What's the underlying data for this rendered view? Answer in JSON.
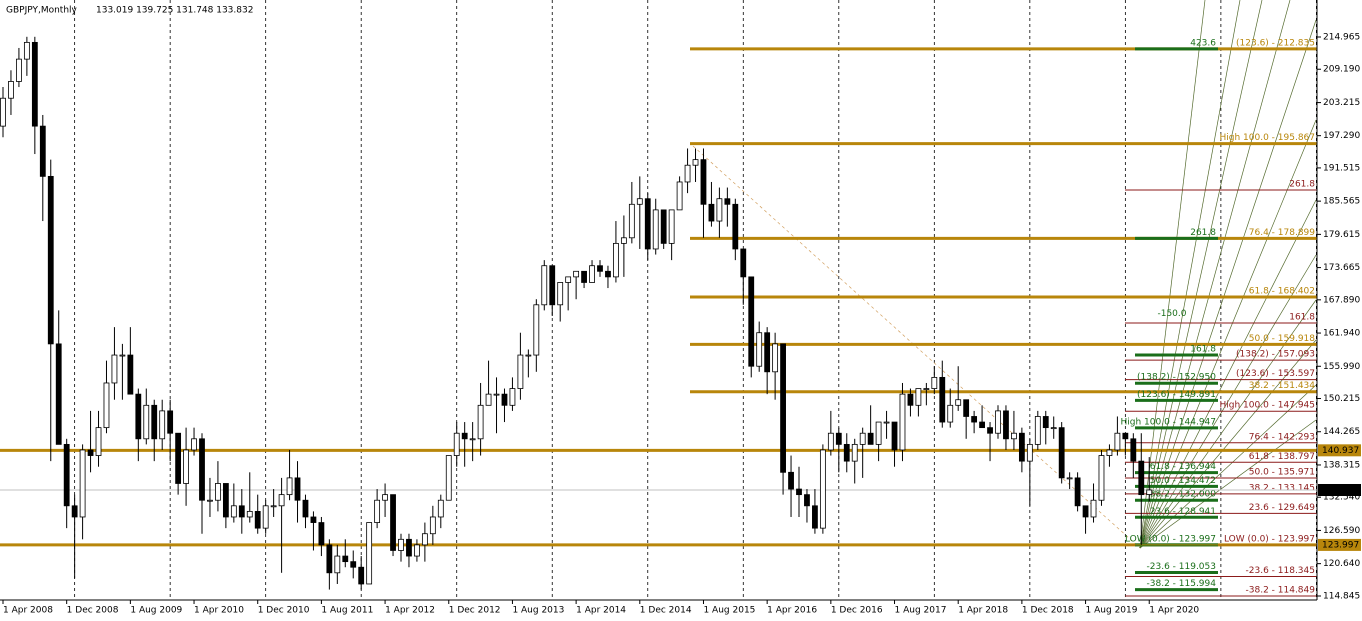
{
  "chart_data": {
    "type": "candlestick",
    "title": "GBPJPY,Monthly",
    "ohlc_label": "133.019 139.725 131.748 133.832",
    "ylim": [
      114.13,
      221.59
    ],
    "yticks": [
      214.965,
      {
        "value": 209.19,
        "label": "209.190"
      },
      203.215,
      {
        "value": 197.29,
        "label": "197.290"
      },
      191.515,
      185.565,
      179.615,
      173.665,
      {
        "value": 167.89,
        "label": "167.890"
      },
      {
        "value": 161.94,
        "label": "161.940"
      },
      {
        "value": 155.99,
        "label": "155.990"
      },
      150.215,
      144.265,
      138.315,
      {
        "value": 132.54,
        "label": "132.540"
      },
      {
        "value": 126.59,
        "label": "126.590"
      },
      {
        "value": 120.64,
        "label": "120.640"
      },
      114.845
    ],
    "categories": [
      "1 Apr 2008",
      null,
      null,
      null,
      null,
      null,
      null,
      null,
      "1 Dec 2008",
      null,
      null,
      null,
      null,
      null,
      null,
      null,
      "1 Aug 2009",
      null,
      null,
      null,
      null,
      null,
      null,
      null,
      "1 Apr 2010",
      null,
      null,
      null,
      null,
      null,
      null,
      null,
      "1 Dec 2010",
      null,
      null,
      null,
      null,
      null,
      null,
      null,
      "1 Aug 2011",
      null,
      null,
      null,
      null,
      null,
      null,
      null,
      "1 Apr 2012",
      null,
      null,
      null,
      null,
      null,
      null,
      null,
      "1 Dec 2012",
      null,
      null,
      null,
      null,
      null,
      null,
      null,
      "1 Aug 2013",
      null,
      null,
      null,
      null,
      null,
      null,
      null,
      "1 Apr 2014",
      null,
      null,
      null,
      null,
      null,
      null,
      null,
      "1 Dec 2014",
      null,
      null,
      null,
      null,
      null,
      null,
      null,
      "1 Aug 2015",
      null,
      null,
      null,
      null,
      null,
      null,
      null,
      "1 Apr 2016",
      null,
      null,
      null,
      null,
      null,
      null,
      null,
      "1 Dec 2016",
      null,
      null,
      null,
      null,
      null,
      null,
      null,
      "1 Aug 2017",
      null,
      null,
      null,
      null,
      null,
      null,
      null,
      "1 Apr 2018",
      null,
      null,
      null,
      null,
      null,
      null,
      null,
      "1 Dec 2018",
      null,
      null,
      null,
      null,
      null,
      null,
      null,
      "1 Aug 2019",
      null,
      null,
      null,
      null,
      null,
      null,
      null,
      "1 Apr 2020"
    ],
    "ohlc": [
      [
        199,
        206,
        197,
        204
      ],
      [
        204,
        209,
        201,
        207
      ],
      [
        207,
        213,
        206,
        211
      ],
      [
        211,
        215,
        208,
        214
      ],
      [
        214,
        215,
        194,
        199
      ],
      [
        199,
        201,
        182,
        190
      ],
      [
        190,
        193,
        139,
        160
      ],
      [
        160,
        166,
        142,
        142
      ],
      [
        142,
        143,
        127,
        131
      ],
      [
        131,
        133,
        118,
        129
      ],
      [
        129,
        142,
        125,
        141
      ],
      [
        141,
        148,
        137,
        140
      ],
      [
        140,
        148,
        138,
        145
      ],
      [
        145,
        157,
        144,
        153
      ],
      [
        153,
        163,
        150,
        158
      ],
      [
        158,
        160,
        150,
        158
      ],
      [
        158,
        163,
        151,
        151
      ],
      [
        151,
        152,
        139,
        143
      ],
      [
        143,
        152,
        142,
        149
      ],
      [
        149,
        150,
        139,
        143
      ],
      [
        143,
        150,
        141,
        148
      ],
      [
        148,
        150,
        139,
        144
      ],
      [
        144,
        144,
        133,
        135
      ],
      [
        135,
        145,
        131,
        141
      ],
      [
        141,
        145,
        140,
        143
      ],
      [
        143,
        144,
        126,
        132
      ],
      [
        132,
        136,
        129,
        132
      ],
      [
        132,
        139,
        130,
        135
      ],
      [
        135,
        135,
        127,
        129
      ],
      [
        129,
        135,
        128,
        131
      ],
      [
        131,
        134,
        126,
        129
      ],
      [
        129,
        137,
        128,
        130
      ],
      [
        130,
        133,
        126,
        127
      ],
      [
        127,
        132,
        126,
        131
      ],
      [
        131,
        134,
        129,
        131
      ],
      [
        131,
        136,
        119,
        133
      ],
      [
        133,
        141,
        132,
        136
      ],
      [
        136,
        139,
        128,
        132
      ],
      [
        132,
        133,
        127,
        129
      ],
      [
        129,
        130,
        123,
        128
      ],
      [
        128,
        129,
        122,
        124
      ],
      [
        124,
        125,
        116,
        119
      ],
      [
        119,
        124,
        117,
        122
      ],
      [
        122,
        125,
        120,
        121
      ],
      [
        121,
        123,
        118,
        120
      ],
      [
        120,
        122,
        116,
        117
      ],
      [
        117,
        128,
        117,
        128
      ],
      [
        128,
        134,
        127,
        132
      ],
      [
        132,
        135,
        129,
        133
      ],
      [
        133,
        133,
        122,
        123
      ],
      [
        123,
        126,
        121,
        125
      ],
      [
        125,
        126,
        120,
        122
      ],
      [
        122,
        125,
        121,
        124
      ],
      [
        124,
        128,
        121,
        126
      ],
      [
        126,
        131,
        124,
        129
      ],
      [
        129,
        133,
        127,
        132
      ],
      [
        132,
        140,
        132,
        140
      ],
      [
        140,
        146,
        138,
        144
      ],
      [
        144,
        146,
        138,
        143
      ],
      [
        143,
        146,
        139,
        143
      ],
      [
        143,
        153,
        140,
        149
      ],
      [
        149,
        157,
        149,
        151
      ],
      [
        151,
        154,
        144,
        151
      ],
      [
        151,
        152,
        146,
        149
      ],
      [
        149,
        154,
        148,
        152
      ],
      [
        152,
        162,
        150,
        158
      ],
      [
        158,
        159,
        154,
        158
      ],
      [
        158,
        168,
        155,
        167
      ],
      [
        167,
        175,
        166,
        174
      ],
      [
        174,
        174,
        165,
        167
      ],
      [
        167,
        171,
        164,
        171
      ],
      [
        171,
        172,
        166,
        172
      ],
      [
        172,
        173,
        168,
        173
      ],
      [
        173,
        173,
        170,
        171
      ],
      [
        171,
        175,
        171,
        174
      ],
      [
        174,
        175,
        172,
        173
      ],
      [
        173,
        174,
        170,
        172
      ],
      [
        172,
        182,
        171,
        178
      ],
      [
        178,
        183,
        172,
        179
      ],
      [
        179,
        189,
        178,
        185
      ],
      [
        185,
        190,
        177,
        186
      ],
      [
        186,
        187,
        175,
        177
      ],
      [
        177,
        186,
        176,
        184
      ],
      [
        184,
        184,
        177,
        178
      ],
      [
        178,
        184,
        175,
        184
      ],
      [
        184,
        190,
        184,
        189
      ],
      [
        189,
        195,
        187,
        192
      ],
      [
        192,
        195,
        189,
        193
      ],
      [
        193,
        195,
        179,
        185
      ],
      [
        185,
        189,
        181,
        182
      ],
      [
        182,
        188,
        179,
        186
      ],
      [
        186,
        188,
        181,
        185
      ],
      [
        185,
        186,
        175,
        177
      ],
      [
        177,
        177,
        167,
        172
      ],
      [
        172,
        172,
        154,
        156
      ],
      [
        156,
        164,
        155,
        162
      ],
      [
        162,
        163,
        151,
        155
      ],
      [
        155,
        162,
        150,
        160
      ],
      [
        160,
        160,
        133,
        137
      ],
      [
        137,
        140,
        129,
        134
      ],
      [
        134,
        138,
        129,
        133
      ],
      [
        133,
        134,
        128,
        131
      ],
      [
        131,
        134,
        126,
        127
      ],
      [
        127,
        142,
        126,
        141
      ],
      [
        141,
        148,
        140,
        144
      ],
      [
        144,
        145,
        137,
        142
      ],
      [
        142,
        144,
        137,
        139
      ],
      [
        139,
        143,
        135,
        142
      ],
      [
        142,
        145,
        136,
        144
      ],
      [
        144,
        149,
        142,
        142
      ],
      [
        142,
        146,
        139,
        146
      ],
      [
        146,
        148,
        143,
        146
      ],
      [
        146,
        146,
        138,
        141
      ],
      [
        141,
        153,
        139,
        151
      ],
      [
        151,
        152,
        147,
        149
      ],
      [
        149,
        152,
        147,
        152
      ],
      [
        152,
        153,
        149,
        152
      ],
      [
        152,
        156,
        151,
        154
      ],
      [
        154,
        157,
        145,
        146
      ],
      [
        146,
        152,
        145,
        149
      ],
      [
        149,
        156,
        148,
        150
      ],
      [
        150,
        150,
        143,
        147
      ],
      [
        147,
        148,
        144,
        146
      ],
      [
        146,
        149,
        145,
        145
      ],
      [
        145,
        146,
        139,
        144
      ],
      [
        144,
        149,
        143,
        148
      ],
      [
        148,
        149,
        141,
        143
      ],
      [
        143,
        148,
        141,
        144
      ],
      [
        144,
        145,
        137,
        139
      ],
      [
        139,
        143,
        131,
        142
      ],
      [
        142,
        148,
        141,
        147
      ],
      [
        147,
        148,
        142,
        145
      ],
      [
        145,
        147,
        143,
        145
      ],
      [
        145,
        146,
        135,
        136
      ],
      [
        136,
        137,
        134,
        136
      ],
      [
        136,
        137,
        130,
        131
      ],
      [
        131,
        131,
        126,
        129
      ],
      [
        129,
        135,
        128,
        132
      ],
      [
        132,
        141,
        131,
        140
      ],
      [
        140,
        142,
        138,
        141
      ],
      [
        141,
        147,
        140,
        144
      ],
      [
        144,
        144,
        140,
        143
      ],
      [
        143,
        144,
        136,
        139
      ],
      [
        139,
        144,
        124,
        133
      ],
      [
        133.019,
        139.725,
        131.748,
        133.832
      ]
    ],
    "levels": [
      {
        "price": 212.835,
        "label": "(123.6) - 212.835",
        "kind": "gold",
        "color": "#b8860b"
      },
      {
        "price": 195.867,
        "label": "High 100.0 - 195.867",
        "kind": "gold",
        "color": "#b8860b"
      },
      {
        "price": 178.899,
        "label": "76.4 - 178.899",
        "kind": "gold",
        "color": "#b8860b"
      },
      {
        "price": 168.402,
        "label": "61.8 - 168.402",
        "kind": "gold",
        "color": "#b8860b"
      },
      {
        "price": 159.918,
        "label": "50.0 - 159.918",
        "kind": "gold",
        "color": "#b8860b"
      },
      {
        "price": 151.434,
        "label": "38.2 - 151.434",
        "kind": "gold",
        "color": "#b8860b"
      },
      {
        "price": 140.937,
        "kind": "goldfull",
        "color": "#b8860b"
      },
      {
        "price": 123.997,
        "kind": "goldfull",
        "color": "#b8860b"
      },
      {
        "price": 187.56,
        "label": "261.8",
        "kind": "red",
        "color": "#8b1a1a"
      },
      {
        "price": 163.74,
        "label": "161.8",
        "kind": "red",
        "color": "#8b1a1a"
      },
      {
        "price": 157.093,
        "label": "(138.2) - 157.093",
        "kind": "red",
        "color": "#8b1a1a"
      },
      {
        "price": 153.597,
        "label": "(123.6) - 153.597",
        "kind": "red",
        "color": "#8b1a1a"
      },
      {
        "price": 147.945,
        "label": "High 100.0 - 147.945",
        "kind": "red",
        "color": "#8b1a1a"
      },
      {
        "price": 142.293,
        "label": "76.4 - 142.293",
        "kind": "red",
        "color": "#8b1a1a"
      },
      {
        "price": 138.797,
        "label": "61.8 - 138.797",
        "kind": "red",
        "color": "#8b1a1a"
      },
      {
        "price": 135.971,
        "label": "50.0 - 135.971",
        "kind": "red",
        "color": "#8b1a1a"
      },
      {
        "price": 133.145,
        "label": "38.2 - 133.145",
        "kind": "red",
        "color": "#8b1a1a"
      },
      {
        "price": 129.649,
        "label": "23.6 - 129.649",
        "kind": "red",
        "color": "#8b1a1a"
      },
      {
        "price": 123.997,
        "label": "LOW (0.0) - 123.997",
        "kind": "red",
        "color": "#8b1a1a"
      },
      {
        "price": 118.345,
        "label": "-23.6 - 118.345",
        "kind": "red",
        "color": "#8b1a1a"
      },
      {
        "price": 114.849,
        "label": "-38.2 - 114.849",
        "kind": "red",
        "color": "#8b1a1a"
      },
      {
        "price": 212.835,
        "label": "423.6",
        "kind": "green",
        "color": "#1a6e1a"
      },
      {
        "price": 178.899,
        "label": "261.8",
        "kind": "green",
        "color": "#1a6e1a"
      },
      {
        "price": 165.4,
        "label": "-150.0",
        "kind": "note",
        "color": "#1a6e1a"
      },
      {
        "price": 158.0,
        "label": "161.8",
        "kind": "green",
        "color": "#1a6e1a"
      },
      {
        "price": 152.95,
        "label": "(138.2) - 152.950",
        "kind": "green",
        "color": "#1a6e1a"
      },
      {
        "price": 149.891,
        "label": "(123.6) - 149.891",
        "kind": "green",
        "color": "#1a6e1a"
      },
      {
        "price": 144.947,
        "label": "High 100.0 - 144.947",
        "kind": "green",
        "color": "#1a6e1a"
      },
      {
        "price": 136.944,
        "label": "61.8 - 136.944",
        "kind": "green",
        "color": "#1a6e1a"
      },
      {
        "price": 134.472,
        "label": "50.0 - 134.472",
        "kind": "green",
        "color": "#1a6e1a"
      },
      {
        "price": 132.0,
        "label": "38.2 - 132.000",
        "kind": "green",
        "color": "#1a6e1a"
      },
      {
        "price": 128.941,
        "label": "23.6 - 128.941",
        "kind": "green",
        "color": "#1a6e1a"
      },
      {
        "price": 123.997,
        "label": "LOW (0.0) - 123.997",
        "kind": "green",
        "color": "#1a6e1a"
      },
      {
        "price": 119.053,
        "label": "-23.6 - 119.053",
        "kind": "green",
        "color": "#1a6e1a"
      },
      {
        "price": 115.994,
        "label": "-38.2 - 115.994",
        "kind": "green",
        "color": "#1a6e1a"
      }
    ],
    "price_markers": [
      {
        "value": 140.937,
        "color": "#b8860b"
      },
      {
        "value": 133.832,
        "color": "#000000"
      },
      {
        "value": 123.997,
        "color": "#b8860b"
      }
    ]
  }
}
